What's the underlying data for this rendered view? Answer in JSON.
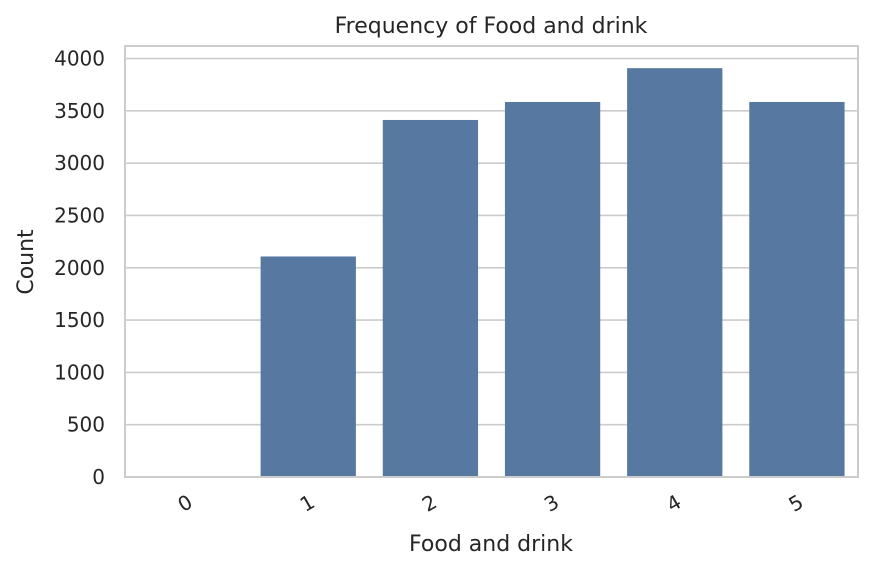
{
  "chart_data": {
    "type": "bar",
    "title": "Frequency of Food and drink",
    "xlabel": "Food and drink",
    "ylabel": "Count",
    "categories": [
      "0",
      "1",
      "2",
      "3",
      "4",
      "5"
    ],
    "values": [
      3,
      2108,
      3413,
      3585,
      3908,
      3585
    ],
    "ylim": [
      0,
      4120
    ],
    "yticks": [
      "0",
      "500",
      "1000",
      "1500",
      "2000",
      "2500",
      "3000",
      "3500",
      "4000"
    ],
    "grid": true,
    "legend": "none",
    "bar_color": "#5778a0",
    "grid_color": "#cccccc",
    "text_color": "#262626"
  }
}
